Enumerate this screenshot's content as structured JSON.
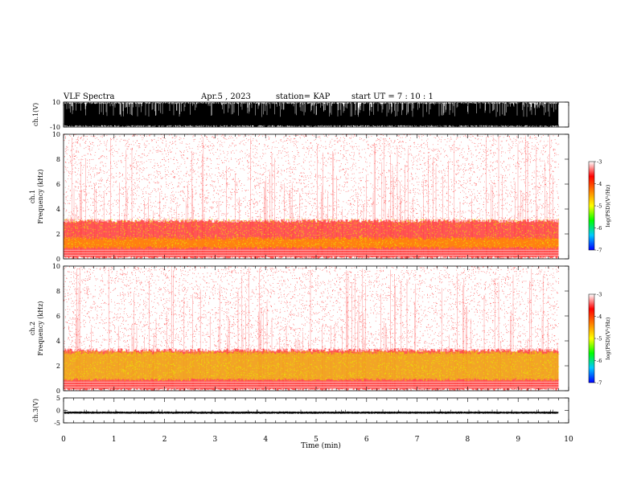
{
  "header": {
    "title": "VLF Spectra",
    "date": "Apr.5 , 2023",
    "station": "station= KAP",
    "start_ut": "start  UT =   7 : 10 : 1"
  },
  "colors": {
    "spectrogram_low": "#ffffff",
    "spectrogram_mid": "#ff2020",
    "spectrogram_high": "#e6e600",
    "waveform": "#000000",
    "colorbar": [
      "#0000ff",
      "#00c8ff",
      "#00ff00",
      "#ffff00",
      "#ff7f00",
      "#ff0000",
      "#ffffff"
    ]
  },
  "chart_data": [
    {
      "type": "line",
      "ylabel": "ch.1(V)",
      "ylim": [
        -10,
        10
      ],
      "yticks": [
        "10",
        "-10"
      ],
      "xlim": [
        0,
        10
      ],
      "description": "ch.1 raw waveform, saturated dense oscillation between approx -10 and 10 V",
      "envelope": {
        "min": -10,
        "max": 10
      }
    },
    {
      "type": "heatmap",
      "ylabel": "ch.1\nFrequency (kHz)",
      "ylabel_line1": "ch.1",
      "ylabel_line2": "Frequency (kHz)",
      "ylim": [
        0,
        10
      ],
      "yticks": [
        "0",
        "2",
        "4",
        "6",
        "8",
        "10"
      ],
      "xlim": [
        0,
        9.8
      ],
      "colorbar": {
        "label": "log(PSD)(V²/Hz)",
        "range": [
          -7,
          -3
        ],
        "ticks": [
          "-3",
          "-4",
          "-5",
          "-6",
          "-7"
        ]
      },
      "bands_khz": [
        {
          "from": 0,
          "to": 3.2,
          "level": -4.2
        },
        {
          "from": 0.8,
          "to": 1.8,
          "level": -3.6
        },
        {
          "from": 3.2,
          "to": 10,
          "level": -5.2
        }
      ]
    },
    {
      "type": "heatmap",
      "ylabel": "ch.2\nFrequency (kHz)",
      "ylabel_line1": "ch.2",
      "ylabel_line2": "Frequency (kHz)",
      "ylim": [
        0,
        10
      ],
      "yticks": [
        "0",
        "2",
        "4",
        "6",
        "8",
        "10"
      ],
      "xlim": [
        0,
        9.8
      ],
      "colorbar": {
        "label": "log(PSD)(V²/Hz)",
        "range": [
          -7,
          -3
        ],
        "ticks": [
          "-3",
          "-4",
          "-5",
          "-6",
          "-7"
        ]
      },
      "bands_khz": [
        {
          "from": 0,
          "to": 3.4,
          "level": -4.0
        },
        {
          "from": 0.8,
          "to": 3.2,
          "level": -3.5
        },
        {
          "from": 3.4,
          "to": 10,
          "level": -5.2
        }
      ]
    },
    {
      "type": "line",
      "ylabel": "ch.3(V)",
      "ylim": [
        -5,
        5
      ],
      "yticks": [
        "5",
        "0",
        "-5"
      ],
      "xlim": [
        0,
        10
      ],
      "description": "ch.3 raw waveform, thin band around approx -1 V",
      "envelope": {
        "min": -1.4,
        "max": -0.4
      }
    }
  ],
  "xaxis": {
    "label": "Time (min)",
    "ticks": [
      "0",
      "1",
      "2",
      "3",
      "4",
      "5",
      "6",
      "7",
      "8",
      "9",
      "10"
    ],
    "range": [
      0,
      10
    ]
  }
}
